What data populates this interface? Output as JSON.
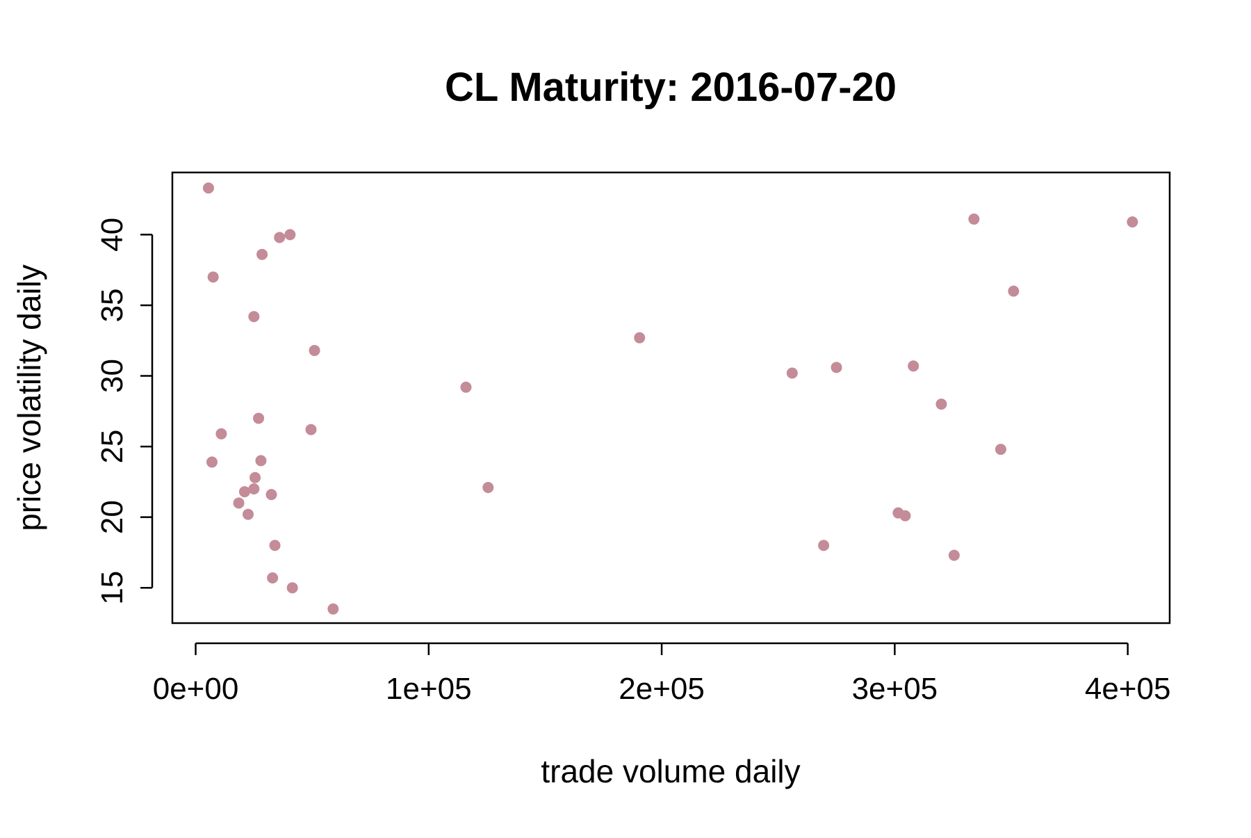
{
  "chart_data": {
    "type": "scatter",
    "title": "CL Maturity: 2016-07-20",
    "xlabel": "trade volume daily",
    "ylabel": "price volatility daily",
    "x_ticks": [
      {
        "value": 0,
        "label": "0e+00"
      },
      {
        "value": 100000,
        "label": "1e+05"
      },
      {
        "value": 200000,
        "label": "2e+05"
      },
      {
        "value": 300000,
        "label": "3e+05"
      },
      {
        "value": 400000,
        "label": "4e+05"
      }
    ],
    "y_ticks": [
      {
        "value": 15,
        "label": "15"
      },
      {
        "value": 20,
        "label": "20"
      },
      {
        "value": 25,
        "label": "25"
      },
      {
        "value": 30,
        "label": "30"
      },
      {
        "value": 35,
        "label": "35"
      },
      {
        "value": 40,
        "label": "40"
      }
    ],
    "xlim": [
      -10000,
      418000
    ],
    "ylim": [
      12.5,
      44.4
    ],
    "grid": false,
    "legend": "none",
    "point_color": "#c48b98",
    "points": [
      {
        "x": 5500,
        "y": 43.3
      },
      {
        "x": 7500,
        "y": 37.0
      },
      {
        "x": 7000,
        "y": 23.9
      },
      {
        "x": 11000,
        "y": 25.9
      },
      {
        "x": 18500,
        "y": 21.0
      },
      {
        "x": 21000,
        "y": 21.8
      },
      {
        "x": 22500,
        "y": 20.2
      },
      {
        "x": 25000,
        "y": 34.2
      },
      {
        "x": 25000,
        "y": 22.0
      },
      {
        "x": 25500,
        "y": 22.8
      },
      {
        "x": 27000,
        "y": 27.0
      },
      {
        "x": 28000,
        "y": 24.0
      },
      {
        "x": 28500,
        "y": 38.6
      },
      {
        "x": 32500,
        "y": 21.6
      },
      {
        "x": 33000,
        "y": 15.7
      },
      {
        "x": 34000,
        "y": 18.0
      },
      {
        "x": 36000,
        "y": 39.8
      },
      {
        "x": 40500,
        "y": 40.0
      },
      {
        "x": 41500,
        "y": 15.0
      },
      {
        "x": 49500,
        "y": 26.2
      },
      {
        "x": 51000,
        "y": 31.8
      },
      {
        "x": 59000,
        "y": 13.5
      },
      {
        "x": 116000,
        "y": 29.2
      },
      {
        "x": 125500,
        "y": 22.1
      },
      {
        "x": 190500,
        "y": 32.7
      },
      {
        "x": 256000,
        "y": 30.2
      },
      {
        "x": 269500,
        "y": 18.0
      },
      {
        "x": 275000,
        "y": 30.6
      },
      {
        "x": 301500,
        "y": 20.3
      },
      {
        "x": 304500,
        "y": 20.1
      },
      {
        "x": 308000,
        "y": 30.7
      },
      {
        "x": 320000,
        "y": 28.0
      },
      {
        "x": 325500,
        "y": 17.3
      },
      {
        "x": 334000,
        "y": 41.1
      },
      {
        "x": 345500,
        "y": 24.8
      },
      {
        "x": 351000,
        "y": 36.0
      },
      {
        "x": 402000,
        "y": 40.9
      }
    ]
  }
}
